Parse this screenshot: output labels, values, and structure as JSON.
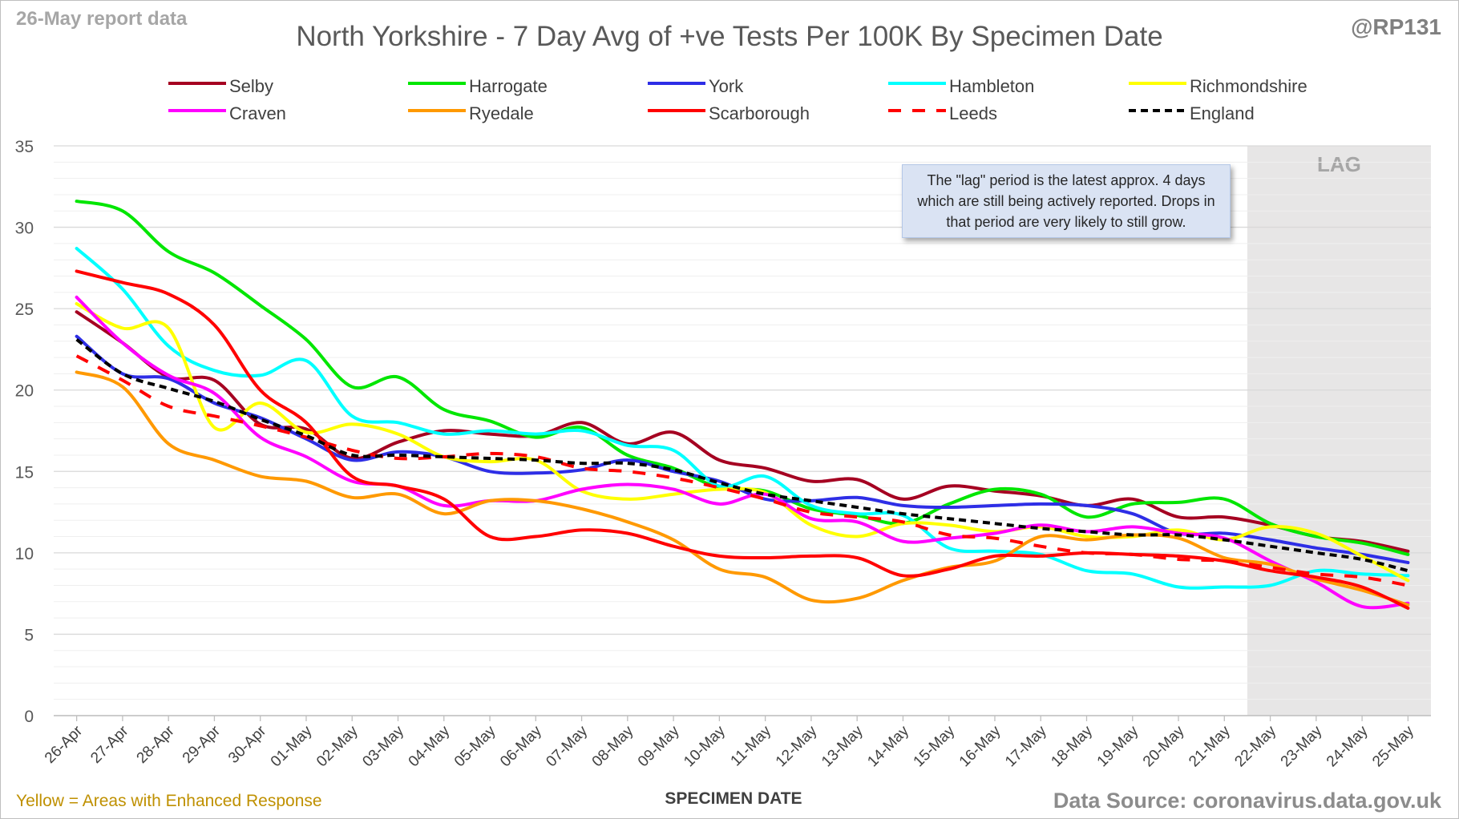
{
  "header": {
    "report_date": "26-May report data",
    "handle": "@RP131",
    "title": "North Yorkshire - 7 Day Avg of +ve Tests Per 100K By Specimen Date"
  },
  "footer": {
    "left_note": "Yellow = Areas with Enhanced Response",
    "source": "Data Source: coronavirus.data.gov.uk"
  },
  "annotations": {
    "lag_label": "LAG",
    "lag_note": "The \"lag\" period is the latest approx. 4 days which are still being actively reported.  Drops in that period are very likely to still grow."
  },
  "chart_data": {
    "type": "line",
    "title": "North Yorkshire - 7 Day Avg of +ve Tests Per 100K By Specimen Date",
    "xlabel": "SPECIMEN DATE",
    "ylabel": "",
    "ylim": [
      0,
      35
    ],
    "yticks": [
      0,
      5,
      10,
      15,
      20,
      25,
      30,
      35
    ],
    "grid": true,
    "legend_position": "top",
    "lag_period": [
      "22-May",
      "25-May"
    ],
    "categories": [
      "26-Apr",
      "27-Apr",
      "28-Apr",
      "29-Apr",
      "30-Apr",
      "01-May",
      "02-May",
      "03-May",
      "04-May",
      "05-May",
      "06-May",
      "07-May",
      "08-May",
      "09-May",
      "10-May",
      "11-May",
      "12-May",
      "13-May",
      "14-May",
      "15-May",
      "16-May",
      "17-May",
      "18-May",
      "19-May",
      "20-May",
      "21-May",
      "22-May",
      "23-May",
      "24-May",
      "25-May"
    ],
    "series": [
      {
        "name": "Selby",
        "color": "#a50021",
        "dash": "solid",
        "values": [
          24.8,
          22.9,
          20.8,
          20.6,
          17.9,
          17.6,
          15.8,
          16.8,
          17.5,
          17.3,
          17.2,
          18.0,
          16.7,
          17.4,
          15.7,
          15.2,
          14.4,
          14.5,
          13.3,
          14.1,
          13.8,
          13.5,
          12.9,
          13.3,
          12.2,
          12.2,
          11.7,
          11.0,
          10.7,
          10.1
        ]
      },
      {
        "name": "Harrogate",
        "color": "#00e600",
        "dash": "solid",
        "values": [
          31.6,
          31.0,
          28.5,
          27.2,
          25.2,
          23.1,
          20.2,
          20.8,
          18.8,
          18.1,
          17.1,
          17.7,
          16.0,
          15.2,
          14.0,
          13.8,
          12.7,
          12.3,
          11.8,
          13.0,
          13.9,
          13.6,
          12.2,
          13.0,
          13.1,
          13.3,
          11.8,
          11.0,
          10.6,
          9.9
        ]
      },
      {
        "name": "York",
        "color": "#2e2ee6",
        "dash": "solid",
        "values": [
          23.3,
          21.0,
          20.7,
          19.2,
          18.3,
          17.0,
          15.7,
          16.2,
          15.9,
          15.0,
          14.9,
          15.1,
          15.7,
          15.0,
          14.4,
          13.3,
          13.2,
          13.4,
          12.9,
          12.8,
          12.9,
          13.0,
          12.9,
          12.4,
          11.2,
          11.2,
          10.8,
          10.3,
          9.9,
          9.4
        ]
      },
      {
        "name": "Hambleton",
        "color": "#00ffff",
        "dash": "solid",
        "values": [
          28.7,
          26.2,
          22.7,
          21.2,
          20.9,
          21.8,
          18.4,
          18.0,
          17.3,
          17.5,
          17.3,
          17.5,
          16.6,
          16.3,
          14.1,
          14.7,
          12.9,
          12.4,
          12.3,
          10.3,
          10.1,
          9.9,
          8.9,
          8.7,
          7.9,
          7.9,
          8.0,
          8.9,
          8.7,
          8.6
        ]
      },
      {
        "name": "Richmondshire",
        "color": "#ffff00",
        "dash": "solid",
        "values": [
          25.3,
          23.8,
          23.8,
          17.7,
          19.2,
          17.4,
          17.9,
          17.3,
          15.9,
          15.6,
          15.7,
          13.8,
          13.3,
          13.6,
          13.9,
          13.7,
          11.7,
          11.0,
          11.8,
          11.7,
          11.3,
          11.6,
          11.0,
          11.0,
          11.4,
          10.8,
          11.6,
          11.2,
          9.8,
          8.3
        ]
      },
      {
        "name": "Craven",
        "color": "#ff00ff",
        "dash": "solid",
        "values": [
          25.7,
          22.9,
          20.9,
          19.8,
          17.1,
          15.9,
          14.4,
          14.1,
          12.9,
          13.2,
          13.2,
          13.9,
          14.2,
          13.9,
          13.0,
          13.6,
          12.1,
          11.9,
          10.7,
          10.9,
          11.2,
          11.7,
          11.3,
          11.6,
          11.2,
          10.9,
          9.5,
          8.2,
          6.7,
          6.9
        ]
      },
      {
        "name": "Ryedale",
        "color": "#ff9900",
        "dash": "solid",
        "values": [
          21.1,
          20.2,
          16.7,
          15.7,
          14.7,
          14.4,
          13.4,
          13.6,
          12.4,
          13.2,
          13.2,
          12.7,
          11.9,
          10.8,
          9.0,
          8.5,
          7.1,
          7.2,
          8.3,
          9.1,
          9.5,
          11.0,
          10.8,
          11.1,
          10.9,
          9.7,
          9.3,
          8.4,
          7.7,
          6.8
        ]
      },
      {
        "name": "Scarborough",
        "color": "#ff0000",
        "dash": "solid",
        "values": [
          27.3,
          26.6,
          25.9,
          24.0,
          20.0,
          18.0,
          14.7,
          14.1,
          13.3,
          11.0,
          11.0,
          11.4,
          11.2,
          10.4,
          9.8,
          9.7,
          9.8,
          9.7,
          8.6,
          9.0,
          9.8,
          9.8,
          10.0,
          9.9,
          9.8,
          9.5,
          8.9,
          8.5,
          7.9,
          6.6
        ]
      },
      {
        "name": "Leeds",
        "color": "#ff0000",
        "dash": "dashed",
        "values": [
          22.1,
          20.6,
          19.0,
          18.4,
          17.8,
          17.1,
          16.3,
          15.8,
          15.9,
          16.1,
          15.9,
          15.2,
          15.0,
          14.6,
          14.0,
          13.3,
          12.5,
          12.2,
          11.9,
          11.1,
          10.9,
          10.4,
          10.0,
          9.9,
          9.6,
          9.5,
          9.1,
          8.7,
          8.5,
          8.0
        ]
      },
      {
        "name": "England",
        "color": "#000000",
        "dash": "dashed",
        "values": [
          23.1,
          21.0,
          20.1,
          19.3,
          18.2,
          17.2,
          16.0,
          16.0,
          15.9,
          15.8,
          15.7,
          15.5,
          15.5,
          15.1,
          14.3,
          13.6,
          13.2,
          12.8,
          12.4,
          12.1,
          11.8,
          11.5,
          11.3,
          11.1,
          11.1,
          10.8,
          10.4,
          10.0,
          9.6,
          8.9
        ]
      }
    ]
  }
}
